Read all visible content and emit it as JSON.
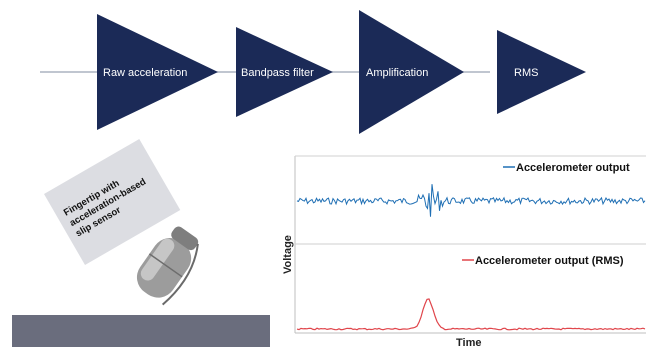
{
  "pipeline": {
    "stages": [
      {
        "label": "Raw acceleration"
      },
      {
        "label": "Bandpass filter"
      },
      {
        "label": "Amplification"
      },
      {
        "label": "RMS"
      }
    ],
    "colors": {
      "stage_fill": "#1b2a57",
      "connector": "#9aa3b5"
    }
  },
  "illustration": {
    "card_lines": [
      "Fingertip with",
      "acceleration-based",
      "slip sensor"
    ],
    "surface_color": "#6a6d7d"
  },
  "plot": {
    "ylabel": "Voltage",
    "xlabel": "Time",
    "top_legend": "Accelerometer output",
    "bottom_legend": "Accelerometer output (RMS)",
    "colors": {
      "raw": "#1f6fb4",
      "rms": "#e0454b"
    }
  }
}
